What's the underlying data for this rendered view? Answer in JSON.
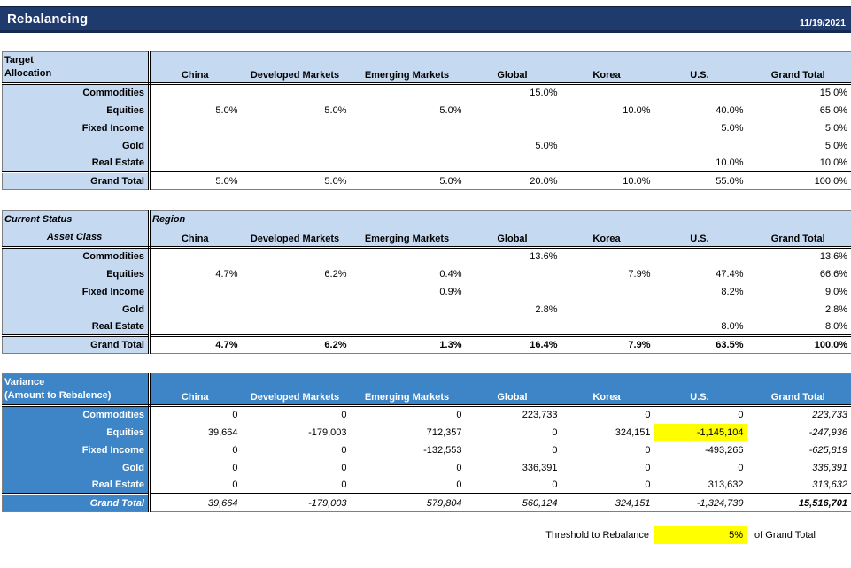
{
  "header": {
    "title": "Rebalancing",
    "date": "11/19/2021"
  },
  "columns": [
    "China",
    "Developed Markets",
    "Emerging Markets",
    "Global",
    "Korea",
    "U.S.",
    "Grand Total"
  ],
  "target_allocation": {
    "title_line1": "Target",
    "title_line2": "Allocation",
    "rows": [
      {
        "label": "Commodities",
        "cells": [
          "",
          "",
          "",
          "15.0%",
          "",
          "",
          "15.0%"
        ]
      },
      {
        "label": "Equities",
        "cells": [
          "5.0%",
          "5.0%",
          "5.0%",
          "",
          "10.0%",
          "40.0%",
          "65.0%"
        ]
      },
      {
        "label": "Fixed Income",
        "cells": [
          "",
          "",
          "",
          "",
          "",
          "5.0%",
          "5.0%"
        ]
      },
      {
        "label": "Gold",
        "cells": [
          "",
          "",
          "",
          "5.0%",
          "",
          "",
          "5.0%"
        ]
      },
      {
        "label": "Real Estate",
        "cells": [
          "",
          "",
          "",
          "",
          "",
          "10.0%",
          "10.0%"
        ]
      }
    ],
    "grand_total": {
      "label": "Grand Total",
      "cells": [
        "5.0%",
        "5.0%",
        "5.0%",
        "20.0%",
        "10.0%",
        "55.0%",
        "100.0%"
      ]
    }
  },
  "current_status": {
    "title_line1": "Current Status",
    "title_line2": "Asset Class",
    "region_label": "Region",
    "rows": [
      {
        "label": "Commodities",
        "cells": [
          "",
          "",
          "",
          "13.6%",
          "",
          "",
          "13.6%"
        ]
      },
      {
        "label": "Equities",
        "cells": [
          "4.7%",
          "6.2%",
          "0.4%",
          "",
          "7.9%",
          "47.4%",
          "66.6%"
        ]
      },
      {
        "label": "Fixed Income",
        "cells": [
          "",
          "",
          "0.9%",
          "",
          "",
          "8.2%",
          "9.0%"
        ]
      },
      {
        "label": "Gold",
        "cells": [
          "",
          "",
          "",
          "2.8%",
          "",
          "",
          "2.8%"
        ]
      },
      {
        "label": "Real Estate",
        "cells": [
          "",
          "",
          "",
          "",
          "",
          "8.0%",
          "8.0%"
        ]
      }
    ],
    "grand_total": {
      "label": "Grand Total",
      "cells": [
        "4.7%",
        "6.2%",
        "1.3%",
        "16.4%",
        "7.9%",
        "63.5%",
        "100.0%"
      ]
    }
  },
  "variance": {
    "title_line1": "Variance",
    "title_line2": "(Amount to Rebalence)",
    "rows": [
      {
        "label": "Commodities",
        "cells": [
          "0",
          "0",
          "0",
          "223,733",
          "0",
          "0",
          "223,733"
        ]
      },
      {
        "label": "Equities",
        "cells": [
          "39,664",
          "-179,003",
          "712,357",
          "0",
          "324,151",
          "-1,145,104",
          "-247,936"
        ]
      },
      {
        "label": "Fixed Income",
        "cells": [
          "0",
          "0",
          "-132,553",
          "0",
          "0",
          "-493,266",
          "-625,819"
        ]
      },
      {
        "label": "Gold",
        "cells": [
          "0",
          "0",
          "0",
          "336,391",
          "0",
          "0",
          "336,391"
        ]
      },
      {
        "label": "Real Estate",
        "cells": [
          "0",
          "0",
          "0",
          "0",
          "0",
          "313,632",
          "313,632"
        ]
      }
    ],
    "grand_total": {
      "label": "Grand Total",
      "cells": [
        "39,664",
        "-179,003",
        "579,804",
        "560,124",
        "324,151",
        "-1,324,739",
        "15,516,701"
      ]
    },
    "highlight": {
      "row": 1,
      "col": 5,
      "color": "#FFFF00"
    }
  },
  "threshold": {
    "label": "Threshold to Rebalance",
    "value": "5%",
    "suffix": "of Grand Total"
  },
  "colors": {
    "titlebar_navy": "#1F3A6D",
    "light_blue": "#C5D9F1",
    "medium_blue": "#3D85C6",
    "highlight_yellow": "#FFFF00"
  }
}
